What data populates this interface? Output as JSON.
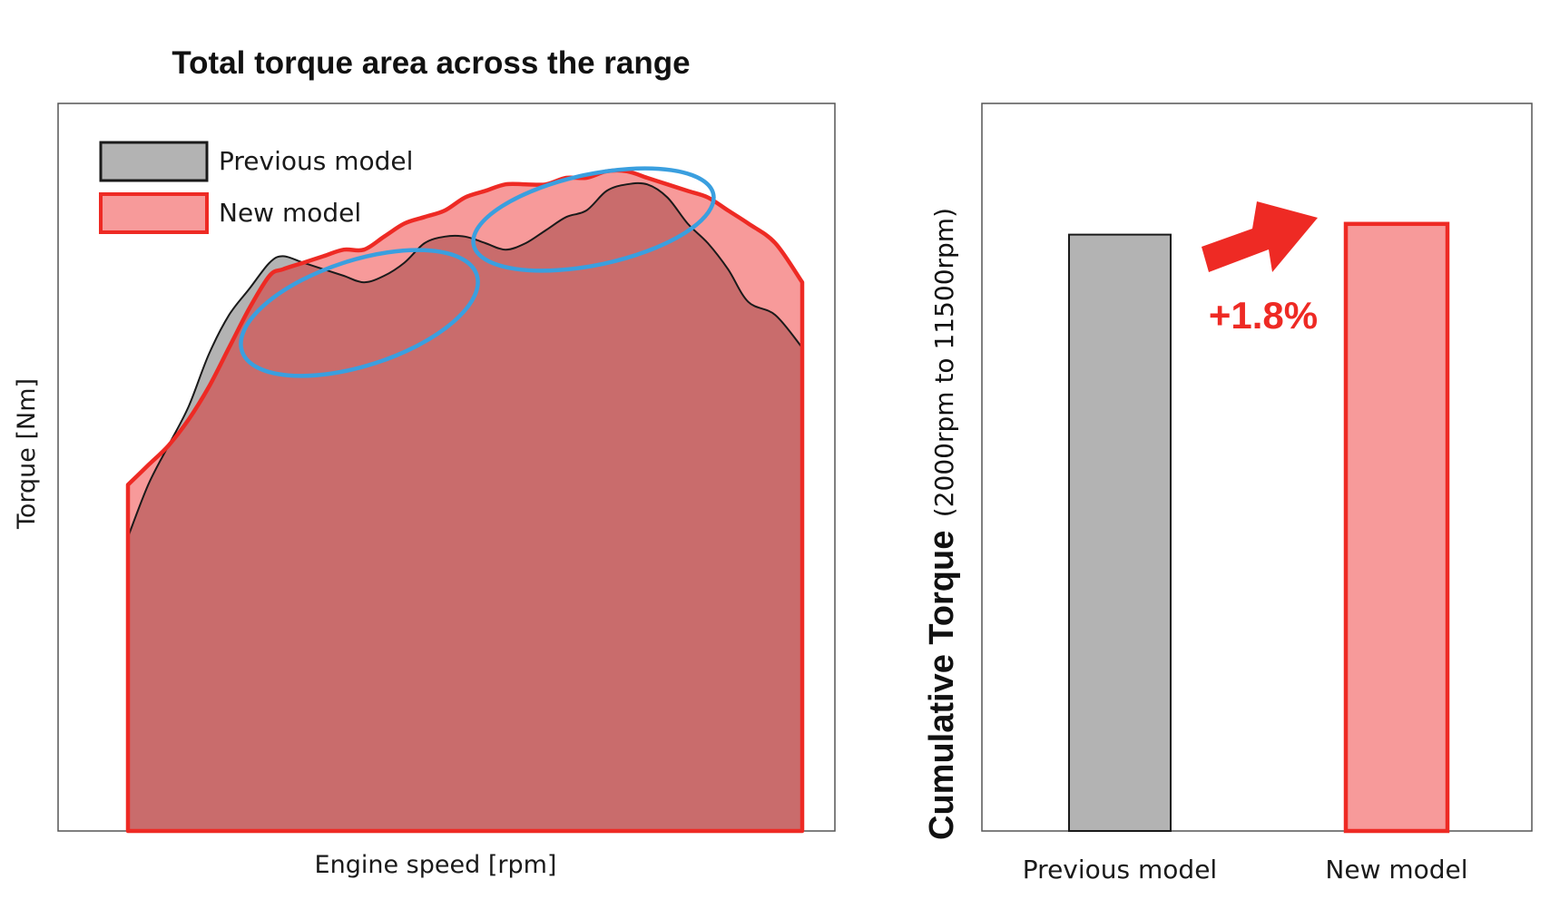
{
  "colors": {
    "previous_fill": "#b3b3b3",
    "previous_stroke": "#1a1a1a",
    "new_fill": "#f79a9a",
    "new_stroke": "#ee2a24",
    "overlap_fill": "#c96c6c",
    "highlight": "#3a9fdf",
    "annotation": "#ee2a24"
  },
  "chart_data": [
    {
      "type": "area",
      "title": "Total torque area across the range",
      "xlabel": "Engine speed [rpm]",
      "ylabel": "Torque [Nm]",
      "xlim": [
        0,
        100
      ],
      "ylim": [
        0,
        100
      ],
      "grid": false,
      "legend": {
        "placement": "top-left",
        "entries": [
          "Previous model",
          "New model"
        ]
      },
      "note": "Axes carry no tick values; x/y are in relative units of the plot area (0-100).",
      "series": [
        {
          "name": "Previous model",
          "x": [
            0,
            3,
            6,
            9,
            12,
            15,
            18,
            21,
            23,
            26,
            29,
            32,
            35,
            38,
            41,
            44,
            47,
            50,
            53,
            56,
            59,
            62,
            65,
            68,
            71,
            74,
            77,
            80,
            83,
            86,
            89,
            92,
            96,
            100
          ],
          "y": [
            45,
            53,
            59,
            65,
            73,
            79,
            83,
            87,
            88,
            87,
            86,
            85,
            84,
            85,
            87,
            90,
            91,
            91,
            90,
            89,
            90,
            92,
            94,
            95,
            98,
            99,
            99,
            97,
            93,
            90,
            86,
            81,
            79,
            74
          ]
        },
        {
          "name": "New model",
          "x": [
            0,
            3,
            6,
            9,
            12,
            15,
            18,
            21,
            23,
            26,
            29,
            32,
            35,
            38,
            41,
            44,
            47,
            50,
            53,
            56,
            59,
            62,
            65,
            68,
            71,
            74,
            77,
            80,
            83,
            86,
            89,
            92,
            96,
            100
          ],
          "y": [
            53,
            56,
            59,
            63,
            68,
            74,
            80,
            85,
            86,
            87,
            88,
            89,
            89,
            91,
            93,
            94,
            95,
            97,
            98,
            99,
            99,
            99,
            100,
            100,
            101,
            101,
            100,
            99,
            98,
            97,
            95,
            93,
            90,
            84
          ]
        }
      ],
      "highlights": [
        "ellipse around 15-48 rpm range",
        "ellipse around 48-80 rpm range"
      ]
    },
    {
      "type": "bar",
      "categories": [
        "Previous model",
        "New model"
      ],
      "values": [
        100,
        101.8
      ],
      "ylabel_main": "Cumulative Torque",
      "ylabel_range": "(2000rpm to 11500rpm)",
      "ylim": [
        0,
        122
      ],
      "grid": false,
      "annotation": {
        "text": "+1.8%",
        "arrow": "up-right"
      }
    }
  ]
}
